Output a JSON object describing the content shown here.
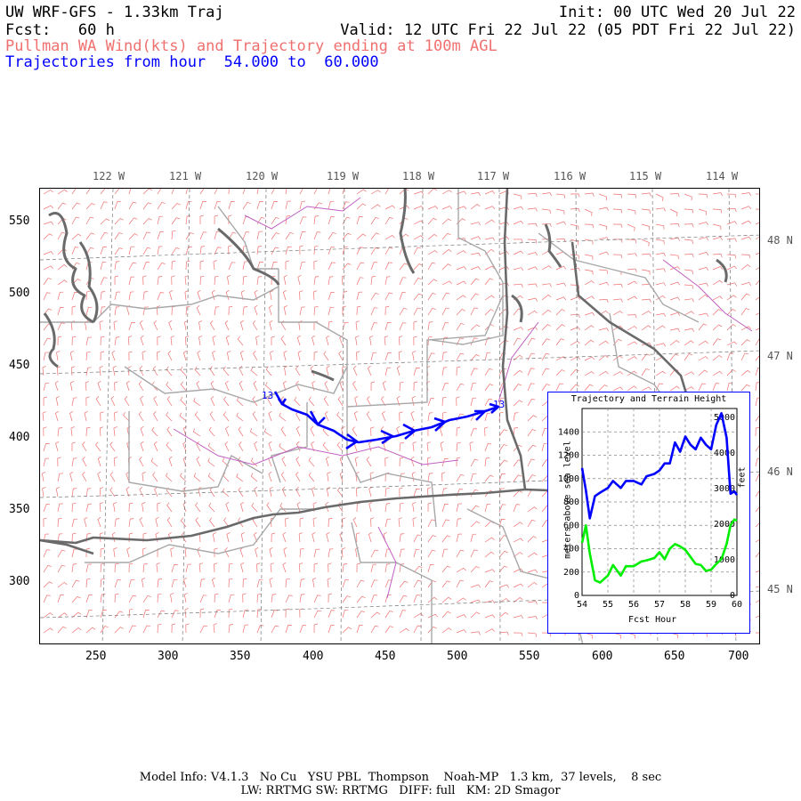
{
  "header": {
    "model_title": "UW WRF-GFS - 1.33km Traj",
    "init": "Init: 00 UTC Wed 20 Jul 22",
    "fcst": "Fcst:   60 h",
    "valid": "Valid: 12 UTC Fri 22 Jul 22 (05 PDT Fri 22 Jul 22)",
    "product": "Pullman WA Wind(kts) and Trajectory ending at 100m AGL",
    "traj_range": "Trajectories from hour  54.000 to  60.000"
  },
  "map": {
    "lon_labels": [
      "122 W",
      "121 W",
      "120 W",
      "119 W",
      "118 W",
      "117 W",
      "116 W",
      "115 W",
      "114 W"
    ],
    "lat_labels": [
      "48 N",
      "47 N",
      "46 N",
      "45 N"
    ],
    "x_ticks": [
      "250",
      "300",
      "350",
      "400",
      "450",
      "500",
      "550",
      "600",
      "650",
      "700"
    ],
    "y_ticks": [
      "550",
      "500",
      "450",
      "400",
      "350",
      "300"
    ],
    "trajectory_start_label": "13",
    "trajectory_end_label": "13",
    "colors": {
      "barbs": "#f07070",
      "trajectory": "#0000ff",
      "state_lines": "#666666",
      "county_lines": "#a0a0a0",
      "rivers": "#c060c0",
      "terrain": "#000000"
    }
  },
  "inset": {
    "title": "Trajectory and Terrain Height",
    "ylabel_left": "meters above sea level",
    "ylabel_right": "feet",
    "xlabel": "Fcst Hour",
    "x_ticks": [
      "54",
      "55",
      "56",
      "57",
      "58",
      "59",
      "60"
    ],
    "y_ticks_m": [
      "0",
      "200",
      "400",
      "600",
      "800",
      "1000",
      "1200",
      "1400"
    ],
    "y_ticks_ft": [
      "0",
      "1000",
      "2000",
      "3000",
      "4000",
      "5000"
    ]
  },
  "chart_data": {
    "type": "line",
    "title": "Trajectory and Terrain Height",
    "xlabel": "Fcst Hour",
    "ylabel": "meters above sea level",
    "xlim": [
      54,
      60
    ],
    "ylim": [
      0,
      1600
    ],
    "series": [
      {
        "name": "",
        "color": "#0000ff",
        "x": [
          54.0,
          54.15,
          54.3,
          54.5,
          54.7,
          55.0,
          55.2,
          55.5,
          55.7,
          56.0,
          56.3,
          56.5,
          56.8,
          57.0,
          57.2,
          57.4,
          57.6,
          57.8,
          58.0,
          58.2,
          58.4,
          58.6,
          58.8,
          59.0,
          59.2,
          59.4,
          59.6,
          59.75,
          59.9,
          60.0
        ],
        "y": [
          1090,
          900,
          660,
          850,
          880,
          920,
          980,
          920,
          980,
          980,
          950,
          1020,
          1040,
          1070,
          1130,
          1130,
          1310,
          1230,
          1360,
          1290,
          1250,
          1350,
          1290,
          1250,
          1460,
          1560,
          1350,
          870,
          890,
          860
        ]
      },
      {
        "name": "",
        "color": "#00ee00",
        "x": [
          54.0,
          54.15,
          54.3,
          54.5,
          54.7,
          55.0,
          55.2,
          55.5,
          55.7,
          56.0,
          56.3,
          56.5,
          56.8,
          57.0,
          57.2,
          57.4,
          57.6,
          57.8,
          58.0,
          58.2,
          58.4,
          58.6,
          58.8,
          59.0,
          59.2,
          59.4,
          59.6,
          59.75,
          59.9,
          60.0
        ],
        "y": [
          450,
          600,
          360,
          130,
          110,
          170,
          260,
          170,
          250,
          250,
          290,
          300,
          320,
          370,
          310,
          400,
          440,
          420,
          390,
          330,
          270,
          260,
          210,
          220,
          270,
          310,
          440,
          600,
          650,
          640
        ]
      }
    ]
  },
  "footer": {
    "line1": "Model Info: V4.1.3   No Cu   YSU PBL  Thompson    Noah-MP   1.3 km,  37 levels,    8 sec",
    "line2": "LW: RRTMG SW: RRTMG   DIFF: full   KM: 2D Smagor"
  }
}
